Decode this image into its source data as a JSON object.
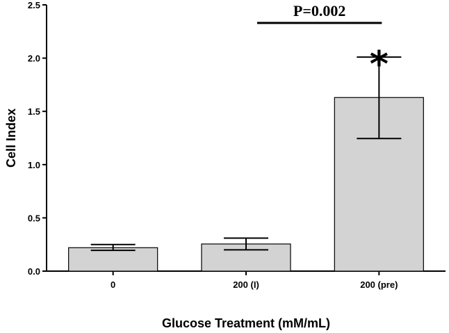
{
  "chart_data": {
    "type": "bar",
    "categories": [
      "0",
      "200 (I)",
      "200 (pre)"
    ],
    "values": [
      0.22,
      0.255,
      1.63
    ],
    "error_low": [
      0.195,
      0.2,
      1.245
    ],
    "error_high": [
      0.25,
      0.31,
      2.01
    ],
    "xlabel": "Glucose Treatment (mM/mL)",
    "ylabel": "Cell Index",
    "ylim": [
      0,
      2.5
    ],
    "yticks": [
      "0.0",
      "0.5",
      "1.0",
      "1.5",
      "2.0",
      "2.5"
    ],
    "grid": false,
    "bar_color": "#d3d3d3",
    "significance": {
      "label": "P=0.002",
      "from_category": 1,
      "to_category": 2,
      "level": 2.33
    },
    "annotation": {
      "symbol": "*",
      "category": 2
    }
  }
}
